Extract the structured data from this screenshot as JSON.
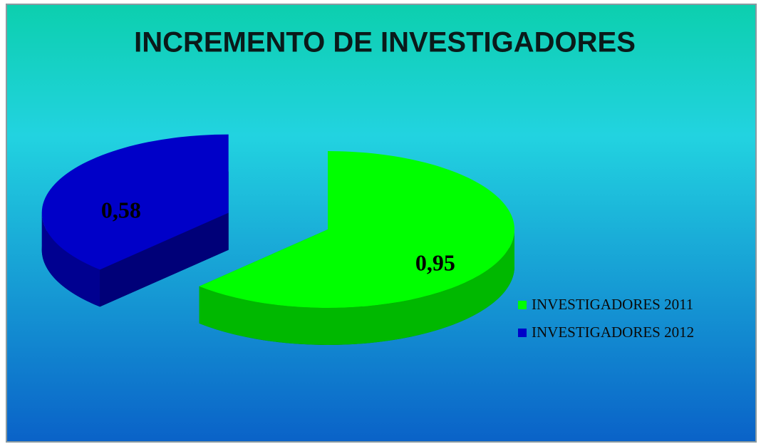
{
  "chart_data": {
    "type": "pie",
    "title": "INCREMENTO DE INVESTIGADORES",
    "categories": [
      "INVESTIGADORES 2011",
      "INVESTIGADORES 2012"
    ],
    "values": [
      0.95,
      0.58
    ],
    "value_labels": [
      "0,95",
      "0,58"
    ],
    "colors": [
      "#00ff00",
      "#0000c8"
    ],
    "legend": "right"
  }
}
